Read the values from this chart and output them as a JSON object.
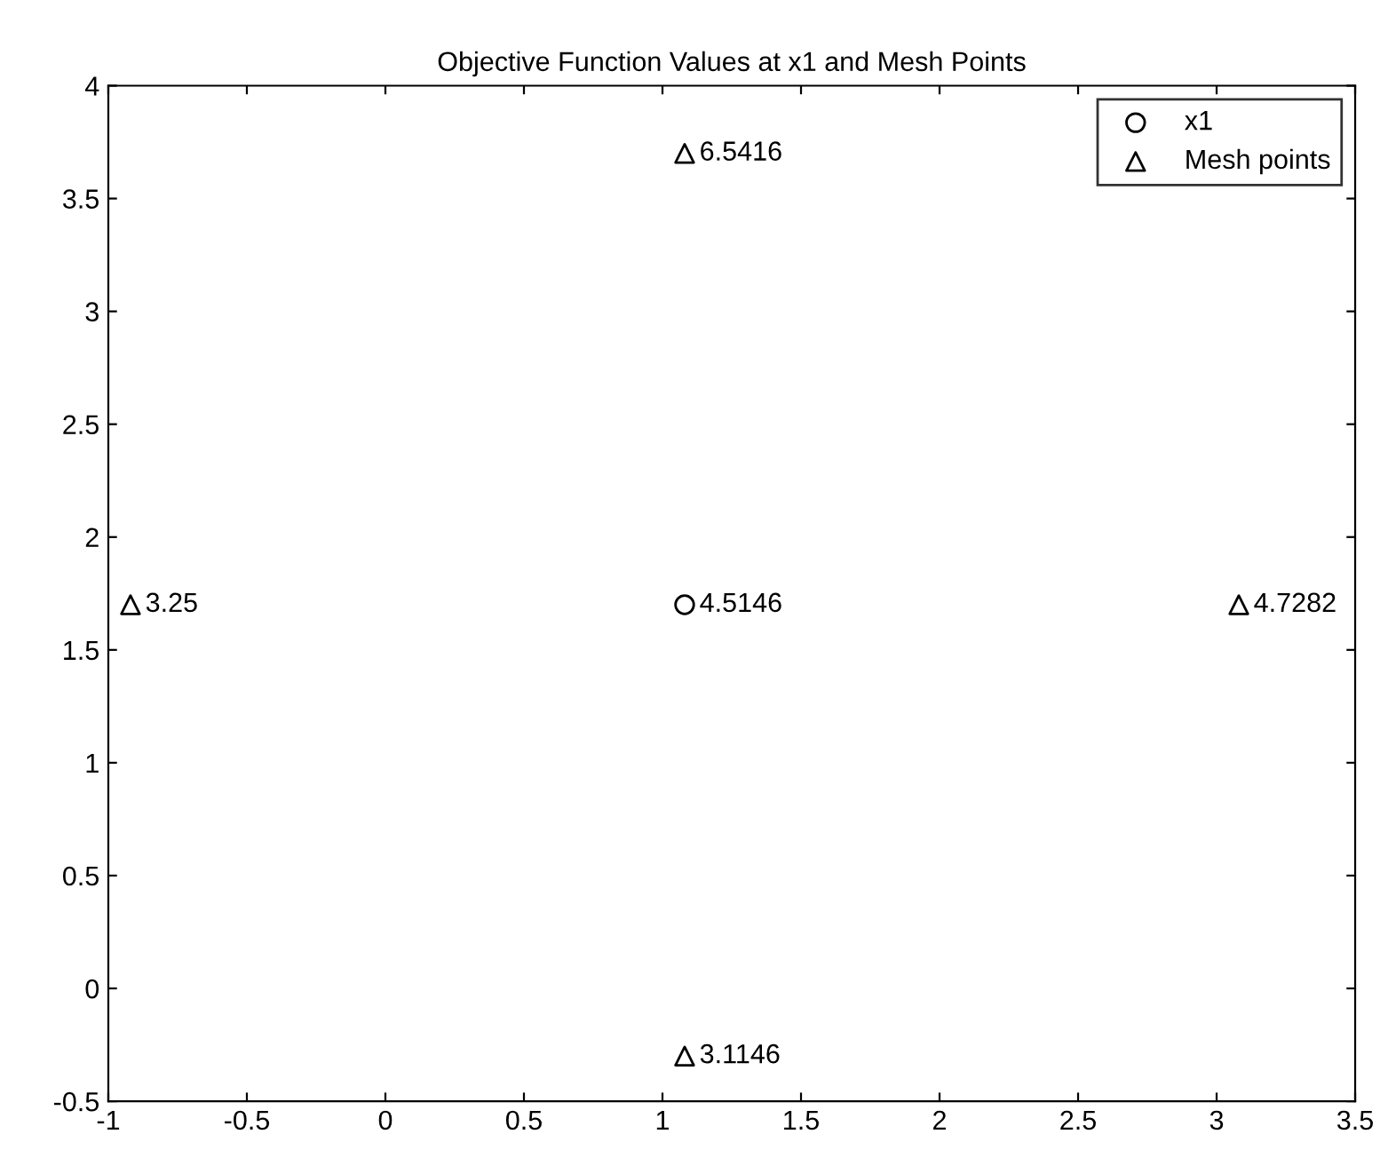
{
  "chart_data": {
    "type": "scatter",
    "title": "Objective Function Values at x1 and Mesh Points",
    "series": [
      {
        "name": "x1",
        "color": "#000000",
        "marker": "circle",
        "x": [
          1.08
        ],
        "values": [
          1.7
        ]
      },
      {
        "name": "Mesh points",
        "color": "#000000",
        "marker": "triangle",
        "x": [
          1.08,
          -0.92,
          3.08,
          1.08
        ],
        "values": [
          3.7,
          1.7,
          1.7,
          -0.3
        ]
      }
    ],
    "annotations": [
      {
        "text": "4.5146",
        "x": 1.08,
        "y": 1.7
      },
      {
        "text": "6.5416",
        "x": 1.08,
        "y": 3.7
      },
      {
        "text": "3.25",
        "x": -0.92,
        "y": 1.7
      },
      {
        "text": "4.7282",
        "x": 3.08,
        "y": 1.7
      },
      {
        "text": "3.1146",
        "x": 1.08,
        "y": -0.3
      }
    ],
    "xlim": [
      -1,
      3.5
    ],
    "xticks": [
      -1,
      -0.5,
      0,
      0.5,
      1,
      1.5,
      2,
      2.5,
      3,
      3.5
    ],
    "ylim": [
      -0.5,
      4
    ],
    "yticks": [
      -0.5,
      0,
      0.5,
      1,
      1.5,
      2,
      2.5,
      3,
      3.5,
      4
    ],
    "grid": false,
    "legend": "top right"
  }
}
